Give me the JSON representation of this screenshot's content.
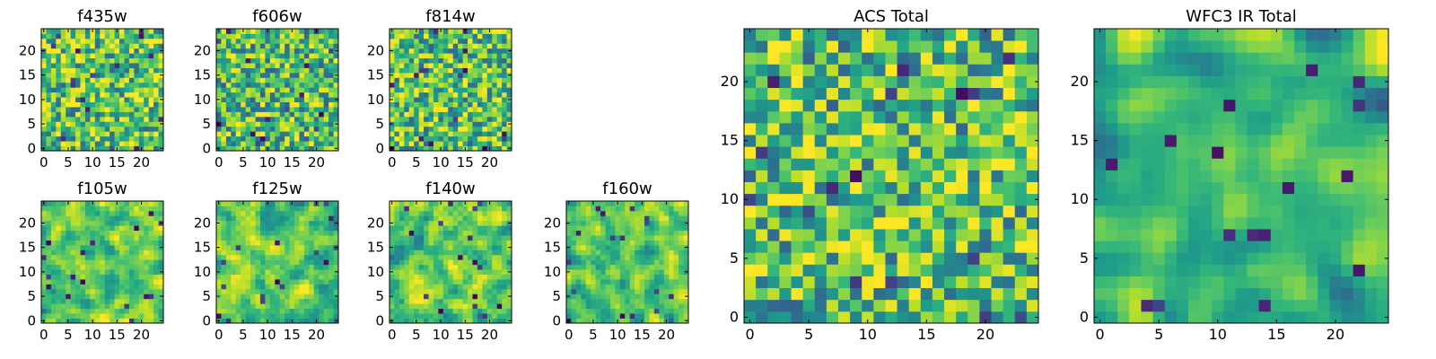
{
  "chart_data": [
    {
      "type": "heatmap",
      "title": "f435w",
      "x_ticks": [
        "0",
        "5",
        "10",
        "15",
        "20"
      ],
      "y_ticks": [
        "0",
        "5",
        "10",
        "15",
        "20"
      ],
      "grid_size": 25,
      "seed": 11,
      "smooth": 0,
      "bias": 0.05
    },
    {
      "type": "heatmap",
      "title": "f606w",
      "x_ticks": [
        "0",
        "5",
        "10",
        "15",
        "20"
      ],
      "y_ticks": [
        "0",
        "5",
        "10",
        "15",
        "20"
      ],
      "grid_size": 25,
      "seed": 23,
      "smooth": 0,
      "bias": 0.02
    },
    {
      "type": "heatmap",
      "title": "f814w",
      "x_ticks": [
        "0",
        "5",
        "10",
        "15",
        "20"
      ],
      "y_ticks": [
        "0",
        "5",
        "10",
        "15",
        "20"
      ],
      "grid_size": 25,
      "seed": 37,
      "smooth": 0,
      "bias": 0.04
    },
    {
      "type": "heatmap",
      "title": "f105w",
      "x_ticks": [
        "0",
        "5",
        "10",
        "15",
        "20"
      ],
      "y_ticks": [
        "0",
        "5",
        "10",
        "15",
        "20"
      ],
      "grid_size": 25,
      "seed": 41,
      "smooth": 1,
      "bias": 0.1
    },
    {
      "type": "heatmap",
      "title": "f125w",
      "x_ticks": [
        "0",
        "5",
        "10",
        "15",
        "20"
      ],
      "y_ticks": [
        "0",
        "5",
        "10",
        "15",
        "20"
      ],
      "grid_size": 25,
      "seed": 53,
      "smooth": 1,
      "bias": 0.06
    },
    {
      "type": "heatmap",
      "title": "f140w",
      "x_ticks": [
        "0",
        "5",
        "10",
        "15",
        "20"
      ],
      "y_ticks": [
        "0",
        "5",
        "10",
        "15",
        "20"
      ],
      "grid_size": 25,
      "seed": 67,
      "smooth": 1,
      "bias": 0.06
    },
    {
      "type": "heatmap",
      "title": "f160w",
      "x_ticks": [
        "0",
        "5",
        "10",
        "15",
        "20"
      ],
      "y_ticks": [
        "0",
        "5",
        "10",
        "15",
        "20"
      ],
      "grid_size": 25,
      "seed": 79,
      "smooth": 1,
      "bias": 0.04
    },
    {
      "type": "heatmap",
      "title": "ACS Total",
      "x_ticks": [
        "0",
        "5",
        "10",
        "15",
        "20"
      ],
      "y_ticks": [
        "0",
        "5",
        "10",
        "15",
        "20"
      ],
      "grid_size": 25,
      "seed": 97,
      "smooth": 0,
      "bias": 0.03
    },
    {
      "type": "heatmap",
      "title": "WFC3 IR Total",
      "x_ticks": [
        "0",
        "5",
        "10",
        "15",
        "20"
      ],
      "y_ticks": [
        "0",
        "5",
        "10",
        "15",
        "20"
      ],
      "grid_size": 25,
      "seed": 113,
      "smooth": 2,
      "bias": 0.0
    }
  ]
}
